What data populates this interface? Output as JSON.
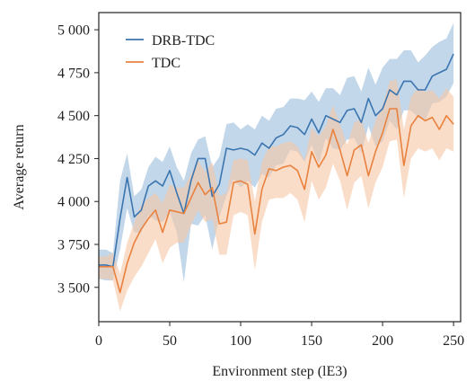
{
  "chart_data": {
    "type": "line",
    "xlabel": "Environment step (lE3)",
    "ylabel": "Average return",
    "xlim": [
      0,
      255
    ],
    "ylim": [
      3300,
      5100
    ],
    "xticks": [
      0,
      50,
      100,
      150,
      200,
      250
    ],
    "xtick_labels": [
      "0",
      "50",
      "100",
      "150",
      "200",
      "250"
    ],
    "yticks": [
      3500,
      3750,
      4000,
      4250,
      4500,
      4750,
      5000
    ],
    "ytick_labels": [
      "3 500",
      "3 750",
      "4 000",
      "4 250",
      "4 500",
      "4 750",
      "5 000"
    ],
    "grid": false,
    "legend_position": "top-left",
    "x": [
      0,
      5,
      10,
      15,
      20,
      25,
      30,
      35,
      40,
      45,
      50,
      55,
      60,
      65,
      70,
      75,
      80,
      85,
      90,
      95,
      100,
      105,
      110,
      115,
      120,
      125,
      130,
      135,
      140,
      145,
      150,
      155,
      160,
      165,
      170,
      175,
      180,
      185,
      190,
      195,
      200,
      205,
      210,
      215,
      220,
      225,
      230,
      235,
      240,
      245,
      250
    ],
    "series": [
      {
        "name": "DRB-TDC",
        "color": "#3b75af",
        "band_color": "#a9c6e1",
        "mean": [
          3630,
          3630,
          3620,
          3900,
          4140,
          3910,
          3950,
          4090,
          4120,
          4090,
          4180,
          4050,
          3930,
          4120,
          4250,
          4250,
          4030,
          4100,
          4310,
          4300,
          4310,
          4300,
          4270,
          4340,
          4310,
          4370,
          4390,
          4440,
          4430,
          4390,
          4480,
          4400,
          4500,
          4480,
          4460,
          4530,
          4540,
          4460,
          4600,
          4500,
          4540,
          4650,
          4620,
          4700,
          4700,
          4650,
          4650,
          4730,
          4750,
          4770,
          4860
        ],
        "upper": [
          3720,
          3720,
          3700,
          4120,
          4280,
          4030,
          4070,
          4200,
          4260,
          4230,
          4320,
          4200,
          4120,
          4280,
          4360,
          4380,
          4200,
          4260,
          4450,
          4460,
          4420,
          4450,
          4420,
          4500,
          4470,
          4540,
          4550,
          4600,
          4600,
          4590,
          4640,
          4580,
          4660,
          4660,
          4620,
          4720,
          4730,
          4640,
          4780,
          4680,
          4780,
          4830,
          4830,
          4880,
          4880,
          4810,
          4850,
          4900,
          4930,
          4950,
          5040
        ],
        "lower": [
          3550,
          3540,
          3540,
          3720,
          3960,
          3820,
          3820,
          3920,
          3890,
          3880,
          3940,
          3820,
          3530,
          3870,
          3860,
          3920,
          3720,
          3910,
          4030,
          4130,
          4080,
          4120,
          4080,
          4160,
          4140,
          4210,
          4220,
          4300,
          4290,
          4230,
          4330,
          4220,
          4370,
          4310,
          4300,
          4360,
          4370,
          4280,
          4440,
          4320,
          4350,
          4470,
          4420,
          4530,
          4530,
          4490,
          4470,
          4570,
          4580,
          4610,
          4690
        ]
      },
      {
        "name": "TDC",
        "color": "#e8823e",
        "band_color": "#f6c7a5",
        "mean": [
          3620,
          3620,
          3620,
          3470,
          3640,
          3760,
          3840,
          3900,
          3950,
          3820,
          3950,
          3940,
          3930,
          4020,
          4110,
          4040,
          4080,
          3870,
          3880,
          4110,
          4120,
          4100,
          3810,
          4070,
          4190,
          4180,
          4200,
          4210,
          4180,
          4070,
          4290,
          4200,
          4270,
          4420,
          4300,
          4150,
          4300,
          4330,
          4150,
          4290,
          4400,
          4540,
          4540,
          4210,
          4440,
          4500,
          4470,
          4490,
          4420,
          4500,
          4450
        ],
        "upper": [
          3680,
          3680,
          3700,
          3580,
          3760,
          3880,
          3980,
          4020,
          4050,
          3990,
          4100,
          4080,
          4080,
          4160,
          4240,
          4170,
          4230,
          4030,
          4050,
          4240,
          4250,
          4240,
          4000,
          4230,
          4320,
          4320,
          4340,
          4350,
          4320,
          4240,
          4430,
          4380,
          4440,
          4560,
          4450,
          4330,
          4460,
          4480,
          4340,
          4470,
          4560,
          4700,
          4710,
          4420,
          4610,
          4660,
          4640,
          4650,
          4600,
          4660,
          4610
        ],
        "lower": [
          3550,
          3550,
          3540,
          3360,
          3480,
          3560,
          3620,
          3700,
          3780,
          3640,
          3730,
          3760,
          3760,
          3860,
          3950,
          3880,
          3900,
          3690,
          3690,
          3920,
          3940,
          3920,
          3600,
          3880,
          4010,
          4020,
          4020,
          4050,
          4010,
          3880,
          4120,
          4010,
          4080,
          4220,
          4120,
          3950,
          4110,
          4150,
          3960,
          4110,
          4200,
          4350,
          4360,
          4020,
          4250,
          4310,
          4290,
          4310,
          4240,
          4310,
          4290
        ]
      }
    ]
  }
}
